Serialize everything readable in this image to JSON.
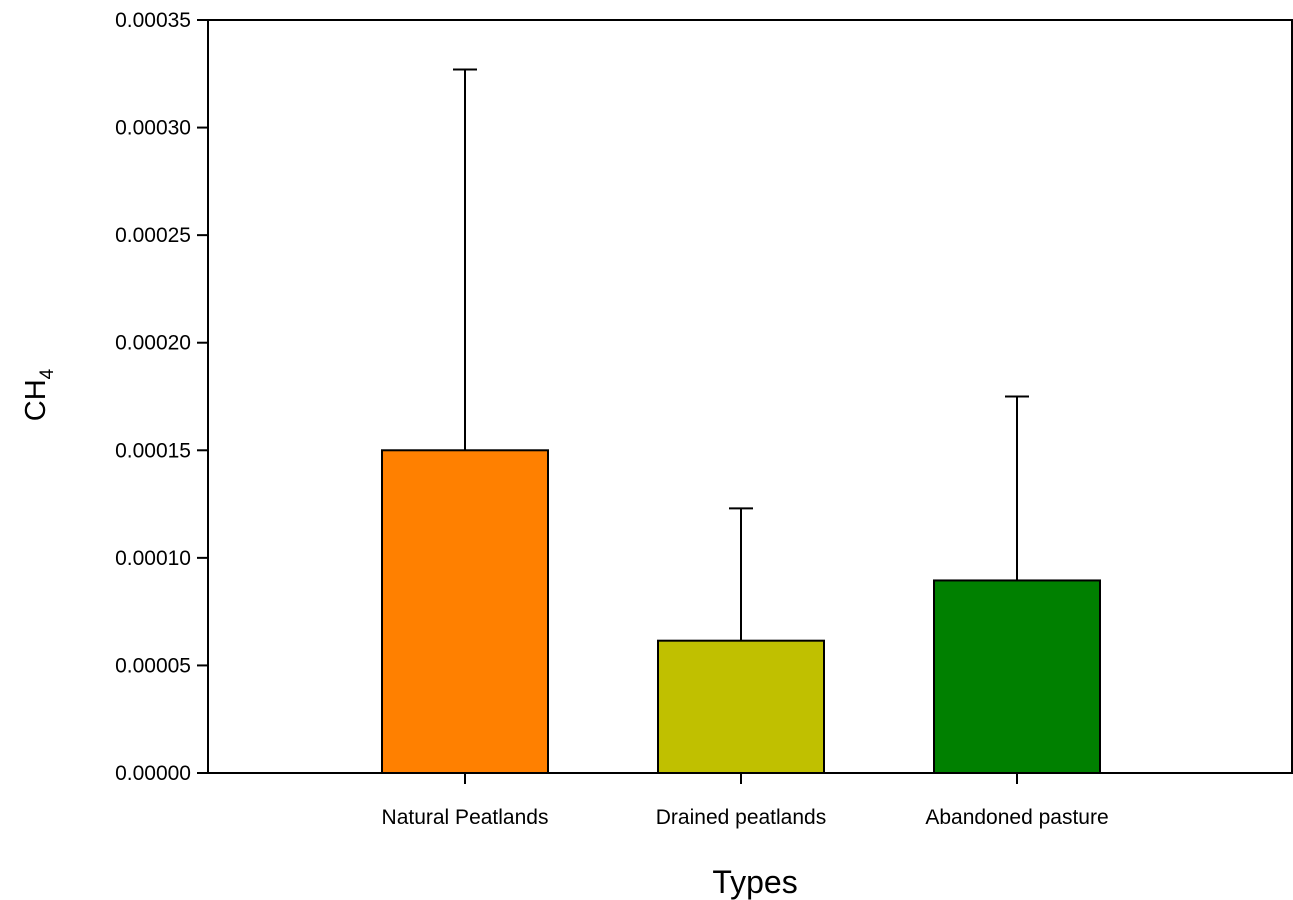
{
  "chart_data": {
    "type": "bar",
    "title": "",
    "xlabel": "Types",
    "ylabel": {
      "base": "CH",
      "subscript": "4"
    },
    "categories": [
      "Natural Peatlands",
      "Drained peatlands",
      "Abandoned pasture"
    ],
    "values": [
      0.00015,
      6.15e-05,
      8.95e-05
    ],
    "error_upper": [
      0.000327,
      0.000123,
      0.000175
    ],
    "colors": [
      "#FF8000",
      "#C0C000",
      "#008000"
    ],
    "ylim": [
      0,
      0.00035
    ],
    "yticks": [
      "0.00000",
      "0.00005",
      "0.00010",
      "0.00015",
      "0.00020",
      "0.00025",
      "0.00030",
      "0.00035"
    ],
    "grid": false,
    "legend": "none"
  }
}
